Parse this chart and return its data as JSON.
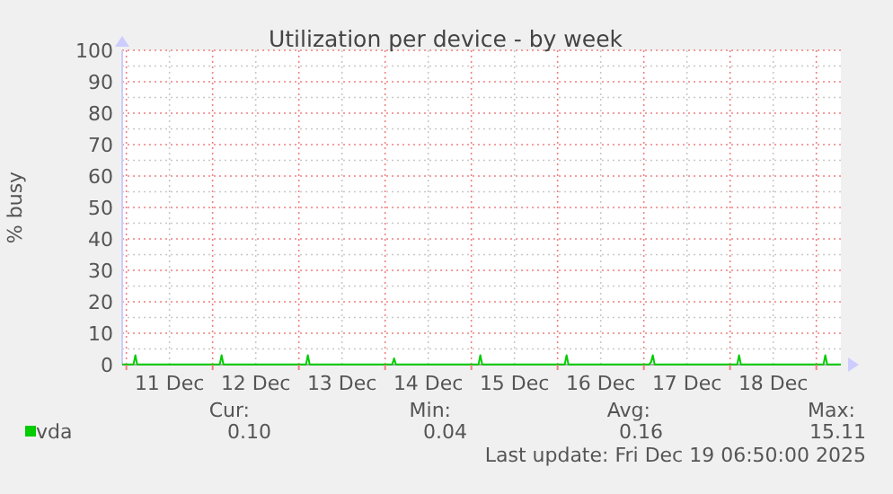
{
  "chart_data": {
    "type": "line",
    "title": "Utilization per device - by week",
    "ylabel": "% busy",
    "x": [
      "2025-12-10T22:50",
      "2025-12-11T02:00",
      "2025-12-11T02:30",
      "2025-12-11T03:00",
      "2025-12-12T02:00",
      "2025-12-12T02:30",
      "2025-12-12T03:00",
      "2025-12-13T02:00",
      "2025-12-13T02:30",
      "2025-12-13T03:00",
      "2025-12-14T02:00",
      "2025-12-14T02:30",
      "2025-12-14T03:00",
      "2025-12-15T02:00",
      "2025-12-15T02:30",
      "2025-12-15T03:00",
      "2025-12-16T02:00",
      "2025-12-16T02:30",
      "2025-12-16T03:00",
      "2025-12-17T01:30",
      "2025-12-17T02:00",
      "2025-12-17T02:30",
      "2025-12-17T03:00",
      "2025-12-18T02:00",
      "2025-12-18T02:30",
      "2025-12-18T03:00",
      "2025-12-19T02:00",
      "2025-12-19T02:30",
      "2025-12-19T03:00",
      "2025-12-19T06:50"
    ],
    "series": [
      {
        "name": "vda",
        "color": "#00cc00",
        "values": [
          0.1,
          0.1,
          3,
          0.1,
          0.1,
          3,
          0.1,
          0.1,
          3,
          0.1,
          0.1,
          2,
          0.1,
          0.1,
          3,
          0.1,
          0.1,
          3,
          0.1,
          0.1,
          0.8,
          3,
          0.1,
          0.1,
          3,
          0.1,
          0.1,
          3,
          0.1,
          0.1
        ]
      }
    ],
    "xlim": [
      "2025-12-10T22:50",
      "2025-12-19T06:50"
    ],
    "xticks": [
      {
        "value": "2025-12-11T00:00",
        "label": null
      },
      {
        "value": "2025-12-11T12:00",
        "label": "11 Dec"
      },
      {
        "value": "2025-12-12T00:00",
        "label": null
      },
      {
        "value": "2025-12-12T12:00",
        "label": "12 Dec"
      },
      {
        "value": "2025-12-13T00:00",
        "label": null
      },
      {
        "value": "2025-12-13T12:00",
        "label": "13 Dec"
      },
      {
        "value": "2025-12-14T00:00",
        "label": null
      },
      {
        "value": "2025-12-14T12:00",
        "label": "14 Dec"
      },
      {
        "value": "2025-12-15T00:00",
        "label": null
      },
      {
        "value": "2025-12-15T12:00",
        "label": "15 Dec"
      },
      {
        "value": "2025-12-16T00:00",
        "label": null
      },
      {
        "value": "2025-12-16T12:00",
        "label": "16 Dec"
      },
      {
        "value": "2025-12-17T00:00",
        "label": null
      },
      {
        "value": "2025-12-17T12:00",
        "label": "17 Dec"
      },
      {
        "value": "2025-12-18T00:00",
        "label": null
      },
      {
        "value": "2025-12-18T12:00",
        "label": "18 Dec"
      },
      {
        "value": "2025-12-19T00:00",
        "label": null
      }
    ],
    "ylim": [
      0,
      100
    ],
    "yticks": [
      0,
      10,
      20,
      30,
      40,
      50,
      60,
      70,
      80,
      90,
      100
    ],
    "grid": true,
    "legend": "bottom left",
    "marker": "none",
    "line_style": "solid",
    "annotations": [
      "Cur:",
      "Min:",
      "Avg:",
      "Max:",
      "0.10",
      "0.04",
      "0.16",
      "15.11",
      "Last update: Fri Dec 19 06:50:00 2025"
    ]
  }
}
